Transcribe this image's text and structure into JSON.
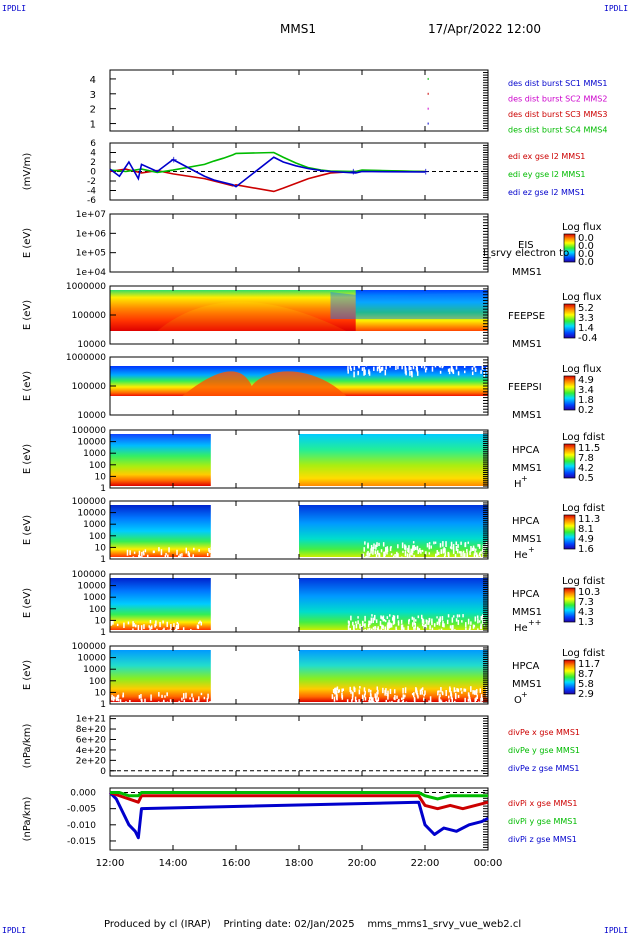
{
  "corner_label": "IPDLI",
  "header": {
    "mission": "MMS1",
    "datetime": "17/Apr/2022 12:00"
  },
  "footer": {
    "produced_by": "Produced by cl (IRAP)",
    "printing_date": "Printing date: 02/Jan/2025",
    "filename": "mms_mms1_srvy_vue_web2.cl"
  },
  "colors": {
    "blue": "#0000cc",
    "magenta": "#cc00cc",
    "red": "#cc0000",
    "green": "#00bb00"
  },
  "chart_data": [
    {
      "id": "des-dist",
      "type": "scatter",
      "ylim": [
        0.5,
        4.6
      ],
      "ytick_labels": [
        "1",
        "2",
        "3",
        "4"
      ],
      "ytick_values": [
        1,
        2,
        3,
        4
      ],
      "legend": [
        {
          "label": "des dist burst SC1 MMS1",
          "color": "#0000cc"
        },
        {
          "label": "des dist burst SC2 MMS2",
          "color": "#cc00cc"
        },
        {
          "label": "des dist burst SC3 MMS3",
          "color": "#cc0000"
        },
        {
          "label": "des dist burst SC4 MMS4",
          "color": "#00bb00"
        }
      ],
      "points": [
        {
          "x": 22.1,
          "y": 1,
          "c": "#0000cc"
        },
        {
          "x": 22.1,
          "y": 2,
          "c": "#cc00cc"
        },
        {
          "x": 22.1,
          "y": 3,
          "c": "#cc0000"
        },
        {
          "x": 22.1,
          "y": 4,
          "c": "#00bb00"
        }
      ]
    },
    {
      "id": "edi",
      "type": "line",
      "ylabel": "(mV/m)",
      "ylim": [
        -6,
        6
      ],
      "ytick_labels": [
        "6",
        "4",
        "2",
        "0",
        "-2",
        "-4",
        "-6"
      ],
      "ytick_values": [
        6,
        4,
        2,
        0,
        -2,
        -4,
        -6
      ],
      "zero_line": true,
      "legend": [
        {
          "label": "edi ex gse l2 MMS1",
          "color": "#cc0000"
        },
        {
          "label": "edi ey gse l2 MMS1",
          "color": "#00bb00"
        },
        {
          "label": "edi ez gse l2 MMS1",
          "color": "#0000cc"
        }
      ],
      "series": [
        {
          "name": "edi ex gse l2 MMS1",
          "color": "#cc0000",
          "x": [
            12.0,
            12.5,
            13.0,
            13.5,
            14.0,
            15.0,
            15.3,
            15.6,
            15.9,
            16.0,
            17.2,
            17.5,
            17.9,
            18.3,
            18.7,
            19.0,
            19.8,
            20.0,
            22.0
          ],
          "y": [
            0,
            0.5,
            -0.3,
            0.2,
            -0.5,
            -1.5,
            -2.0,
            -2.5,
            -3.0,
            -2.8,
            -4.2,
            -3.5,
            -2.5,
            -1.5,
            -0.8,
            -0.3,
            0,
            0.2,
            0
          ]
        },
        {
          "name": "edi ey gse l2 MMS1",
          "color": "#00bb00",
          "x": [
            12.0,
            12.5,
            13.0,
            13.5,
            14.0,
            15.0,
            15.3,
            15.6,
            15.9,
            16.0,
            17.2,
            17.5,
            17.9,
            18.3,
            18.7,
            19.0,
            19.8,
            20.0,
            22.0
          ],
          "y": [
            0.3,
            0,
            0.5,
            -0.2,
            0.3,
            1.5,
            2.2,
            2.8,
            3.5,
            3.8,
            4.0,
            3.0,
            1.8,
            0.8,
            0.3,
            0.1,
            0,
            0.3,
            0
          ]
        },
        {
          "name": "edi ez gse l2 MMS1",
          "color": "#0000cc",
          "x": [
            12.0,
            12.3,
            12.6,
            12.9,
            13.0,
            13.5,
            14.0,
            15.0,
            15.3,
            15.6,
            15.9,
            16.0,
            17.2,
            17.5,
            17.9,
            18.3,
            18.7,
            19.0,
            19.8,
            20.0,
            22.0
          ],
          "y": [
            0.5,
            -1.0,
            2.0,
            -1.5,
            1.5,
            0,
            2.5,
            -1.0,
            -1.8,
            -2.3,
            -2.8,
            -3.2,
            3.0,
            2.0,
            1.2,
            0.6,
            0.2,
            0,
            -0.3,
            0,
            -0.1
          ]
        }
      ]
    },
    {
      "id": "eis",
      "type": "heatmap",
      "ylabel": "E (eV)",
      "ytick_labels": [
        "1e+07",
        "1e+06",
        "1e+05",
        "1e+04"
      ],
      "instrument": "EIS",
      "instrument2": "MMS1",
      "overlay_text": "l_srvy electron to",
      "cbar_title": "Log flux",
      "cbar_ticks": [
        "0.0",
        "0.0",
        "0.0",
        "0.0"
      ],
      "empty": true
    },
    {
      "id": "feepse",
      "type": "heatmap",
      "ylabel": "E (eV)",
      "ytick_labels": [
        "1000000",
        "100000",
        "10000"
      ],
      "instrument": "FEEPSE",
      "instrument2": "MMS1",
      "cbar_title": "Log flux",
      "cbar_ticks": [
        "5.2",
        "3.3",
        "1.4",
        "-0.4"
      ]
    },
    {
      "id": "feepsi",
      "type": "heatmap",
      "ylabel": "E (eV)",
      "ytick_labels": [
        "1000000",
        "100000",
        "10000"
      ],
      "instrument": "FEEPSI",
      "instrument2": "MMS1",
      "cbar_title": "Log flux",
      "cbar_ticks": [
        "4.9",
        "3.4",
        "1.8",
        "0.2"
      ]
    },
    {
      "id": "hpca-h",
      "type": "heatmap",
      "ylabel": "E (eV)",
      "ytick_labels": [
        "100000",
        "10000",
        "1000",
        "100",
        "10",
        "1"
      ],
      "instrument": "HPCA",
      "instrument2": "MMS1",
      "species": "H",
      "species_sup": "+",
      "cbar_title": "Log fdist",
      "cbar_ticks": [
        "11.5",
        "7.8",
        "4.2",
        "0.5"
      ],
      "gap": [
        15.2,
        18.0
      ]
    },
    {
      "id": "hpca-he",
      "type": "heatmap",
      "ylabel": "E (eV)",
      "ytick_labels": [
        "100000",
        "10000",
        "1000",
        "100",
        "10",
        "1"
      ],
      "instrument": "HPCA",
      "instrument2": "MMS1",
      "species": "He",
      "species_sup": "+",
      "cbar_title": "Log fdist",
      "cbar_ticks": [
        "11.3",
        "8.1",
        "4.9",
        "1.6"
      ],
      "gap": [
        15.2,
        18.0
      ]
    },
    {
      "id": "hpca-hepp",
      "type": "heatmap",
      "ylabel": "E (eV)",
      "ytick_labels": [
        "100000",
        "10000",
        "1000",
        "100",
        "10",
        "1"
      ],
      "instrument": "HPCA",
      "instrument2": "MMS1",
      "species": "He",
      "species_sup": "++",
      "cbar_title": "Log fdist",
      "cbar_ticks": [
        "10.3",
        "7.3",
        "4.3",
        "1.3"
      ],
      "gap": [
        15.2,
        18.0
      ]
    },
    {
      "id": "hpca-o",
      "type": "heatmap",
      "ylabel": "E (eV)",
      "ytick_labels": [
        "100000",
        "10000",
        "1000",
        "100",
        "10",
        "1"
      ],
      "instrument": "HPCA",
      "instrument2": "MMS1",
      "species": "O",
      "species_sup": "+",
      "cbar_title": "Log fdist",
      "cbar_ticks": [
        "11.7",
        "8.7",
        "5.8",
        "2.9"
      ],
      "gap": [
        15.2,
        18.0
      ]
    },
    {
      "id": "divpe",
      "type": "line",
      "ylabel": "(nPa/km)",
      "ytick_labels": [
        "1e+21",
        "8e+20",
        "6e+20",
        "4e+20",
        "2e+20",
        "0"
      ],
      "ytick_values": [
        1e+21,
        8e+20,
        6e+20,
        4e+20,
        2e+20,
        0
      ],
      "ylim": [
        -1e+20,
        1.05e+21
      ],
      "zero_line": true,
      "legend": [
        {
          "label": "divPe x gse MMS1",
          "color": "#cc0000"
        },
        {
          "label": "divPe y gse MMS1",
          "color": "#00bb00"
        },
        {
          "label": "divPe z gse MMS1",
          "color": "#0000cc"
        }
      ],
      "series": []
    },
    {
      "id": "divpi",
      "type": "line",
      "ylabel": "(nPa/km)",
      "ytick_labels": [
        "0.000",
        "-0.005",
        "-0.010",
        "-0.015"
      ],
      "ytick_values": [
        0,
        -0.005,
        -0.01,
        -0.015
      ],
      "ylim": [
        -0.0178,
        0.0014
      ],
      "zero_line": true,
      "legend": [
        {
          "label": "divPi x gse MMS1",
          "color": "#cc0000"
        },
        {
          "label": "divPi y gse MMS1",
          "color": "#00bb00"
        },
        {
          "label": "divPi z gse MMS1",
          "color": "#0000cc"
        }
      ],
      "series": [
        {
          "name": "divPi z gse MMS1",
          "color": "#0000cc",
          "x": [
            12.0,
            12.2,
            12.4,
            12.6,
            12.8,
            12.9,
            13.0,
            21.8,
            22.0,
            22.3,
            22.6,
            23.0,
            23.4,
            23.8,
            24.0
          ],
          "y": [
            0,
            -0.002,
            -0.006,
            -0.01,
            -0.012,
            -0.014,
            -0.005,
            -0.003,
            -0.01,
            -0.013,
            -0.011,
            -0.012,
            -0.01,
            -0.009,
            -0.008
          ]
        },
        {
          "name": "divPi x gse MMS1",
          "color": "#cc0000",
          "x": [
            12.0,
            12.3,
            12.6,
            12.9,
            13.0,
            21.8,
            22.0,
            22.4,
            22.8,
            23.2,
            23.6,
            24.0
          ],
          "y": [
            0,
            -0.001,
            -0.002,
            -0.003,
            -0.001,
            -0.001,
            -0.004,
            -0.005,
            -0.004,
            -0.005,
            -0.004,
            -0.003
          ]
        },
        {
          "name": "divPi y gse MMS1",
          "color": "#00bb00",
          "x": [
            12.0,
            12.3,
            12.6,
            12.9,
            13.0,
            21.8,
            22.0,
            22.4,
            22.8,
            23.2,
            23.6,
            24.0
          ],
          "y": [
            0,
            0,
            -0.001,
            -0.001,
            0,
            0,
            -0.001,
            -0.002,
            -0.001,
            -0.001,
            -0.001,
            -0.001
          ]
        }
      ]
    }
  ],
  "xaxis": {
    "tick_labels": [
      "12:00",
      "14:00",
      "16:00",
      "18:00",
      "20:00",
      "22:00",
      "00:00"
    ],
    "tick_values": [
      12,
      14,
      16,
      18,
      20,
      22,
      24
    ],
    "range": [
      12,
      24
    ]
  }
}
